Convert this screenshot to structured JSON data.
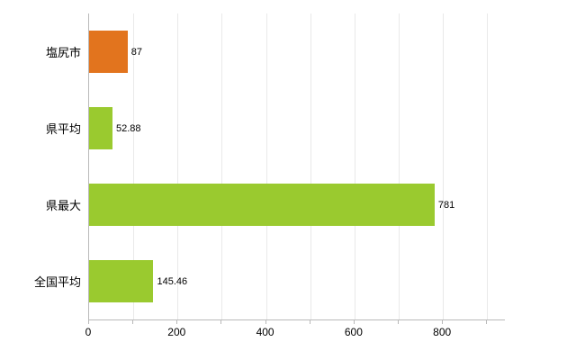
{
  "chart_data": {
    "type": "bar",
    "orientation": "horizontal",
    "title": "",
    "xlabel": "",
    "ylabel": "",
    "categories": [
      "塩尻市",
      "県平均",
      "県最大",
      "全国平均"
    ],
    "values": [
      87,
      52.88,
      781,
      145.46
    ],
    "value_labels": [
      "87",
      "52.88",
      "781",
      "145.46"
    ],
    "bar_colors": [
      "#e2741e",
      "#9aca2f",
      "#9aca2f",
      "#9aca2f"
    ],
    "xlim": [
      0,
      940
    ],
    "x_major_ticks": [
      0,
      200,
      400,
      600,
      800
    ],
    "x_minor_tick_step": 100,
    "grid": true,
    "legend": "none"
  },
  "colors": {
    "background": "#ffffff",
    "axis": "#b9b9b9",
    "grid": "#e9e9e9",
    "text": "#000000",
    "orange_bar": "#e2741e",
    "green_bar": "#9aca2f"
  }
}
